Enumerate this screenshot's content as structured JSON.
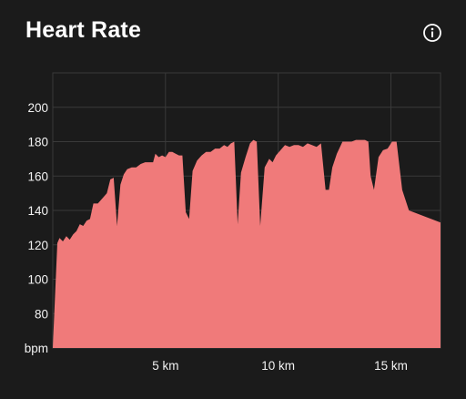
{
  "header": {
    "title": "Heart Rate",
    "info_icon": "info-circle-icon"
  },
  "chart_data": {
    "type": "area",
    "title": "Heart Rate",
    "xlabel": "",
    "ylabel": "bpm",
    "xlim": [
      0,
      17.2
    ],
    "ylim": [
      60,
      220
    ],
    "y_ticks": [
      80,
      100,
      120,
      140,
      160,
      180,
      200
    ],
    "y_unit_label": "bpm",
    "x_ticks": [
      {
        "value": 5,
        "label": "5 km"
      },
      {
        "value": 10,
        "label": "10 km"
      },
      {
        "value": 15,
        "label": "15 km"
      }
    ],
    "grid": true,
    "series": [
      {
        "color": "#f07a7a",
        "points": [
          [
            0.0,
            60
          ],
          [
            0.2,
            121
          ],
          [
            0.3,
            124
          ],
          [
            0.45,
            122
          ],
          [
            0.6,
            125
          ],
          [
            0.75,
            123
          ],
          [
            0.9,
            126
          ],
          [
            1.05,
            128
          ],
          [
            1.2,
            132
          ],
          [
            1.35,
            131
          ],
          [
            1.5,
            134
          ],
          [
            1.65,
            135
          ],
          [
            1.8,
            144
          ],
          [
            2.0,
            144
          ],
          [
            2.2,
            147
          ],
          [
            2.4,
            150
          ],
          [
            2.55,
            158
          ],
          [
            2.7,
            159
          ],
          [
            2.85,
            131
          ],
          [
            3.0,
            155
          ],
          [
            3.15,
            161
          ],
          [
            3.3,
            164
          ],
          [
            3.5,
            165
          ],
          [
            3.7,
            165
          ],
          [
            3.9,
            167
          ],
          [
            4.1,
            168
          ],
          [
            4.3,
            168
          ],
          [
            4.45,
            168
          ],
          [
            4.55,
            173
          ],
          [
            4.7,
            171
          ],
          [
            4.85,
            172
          ],
          [
            5.0,
            171
          ],
          [
            5.15,
            174
          ],
          [
            5.3,
            174
          ],
          [
            5.45,
            173
          ],
          [
            5.6,
            172
          ],
          [
            5.75,
            172
          ],
          [
            5.9,
            139
          ],
          [
            6.05,
            135
          ],
          [
            6.2,
            163
          ],
          [
            6.4,
            169
          ],
          [
            6.6,
            172
          ],
          [
            6.8,
            174
          ],
          [
            7.0,
            174
          ],
          [
            7.2,
            176
          ],
          [
            7.4,
            176
          ],
          [
            7.6,
            178
          ],
          [
            7.75,
            177
          ],
          [
            7.9,
            179
          ],
          [
            8.05,
            180
          ],
          [
            8.2,
            132
          ],
          [
            8.35,
            162
          ],
          [
            8.55,
            171
          ],
          [
            8.75,
            179
          ],
          [
            8.9,
            181
          ],
          [
            9.05,
            180
          ],
          [
            9.2,
            131
          ],
          [
            9.4,
            165
          ],
          [
            9.6,
            170
          ],
          [
            9.75,
            168
          ],
          [
            9.9,
            172
          ],
          [
            10.1,
            175
          ],
          [
            10.3,
            178
          ],
          [
            10.5,
            177
          ],
          [
            10.7,
            178
          ],
          [
            10.9,
            178
          ],
          [
            11.1,
            177
          ],
          [
            11.3,
            179
          ],
          [
            11.5,
            178
          ],
          [
            11.7,
            177
          ],
          [
            11.9,
            179
          ],
          [
            12.1,
            152
          ],
          [
            12.25,
            152
          ],
          [
            12.4,
            165
          ],
          [
            12.6,
            173
          ],
          [
            12.85,
            180
          ],
          [
            13.05,
            180
          ],
          [
            13.25,
            180
          ],
          [
            13.45,
            181
          ],
          [
            13.65,
            181
          ],
          [
            13.85,
            181
          ],
          [
            14.0,
            180
          ],
          [
            14.1,
            160
          ],
          [
            14.25,
            152
          ],
          [
            14.45,
            171
          ],
          [
            14.65,
            175
          ],
          [
            14.85,
            176
          ],
          [
            15.05,
            180
          ],
          [
            15.25,
            180
          ],
          [
            15.5,
            152
          ],
          [
            15.8,
            140
          ],
          [
            17.2,
            133
          ],
          [
            17.2,
            60
          ]
        ]
      }
    ]
  }
}
